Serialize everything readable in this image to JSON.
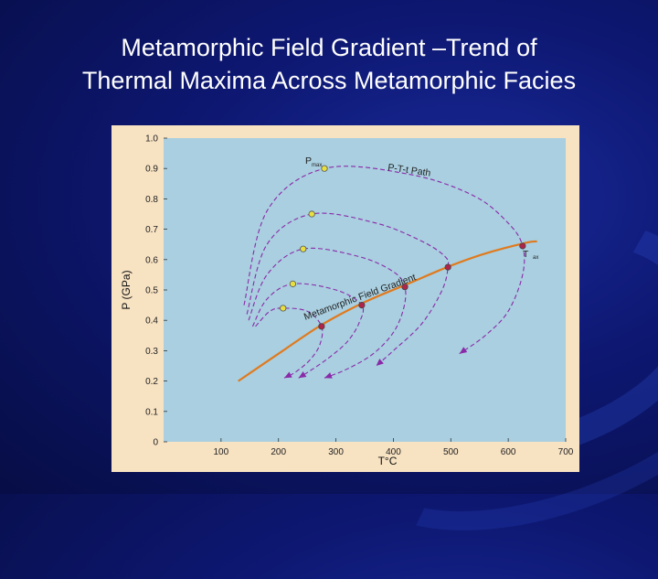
{
  "slide": {
    "title_line1": "Metamorphic Field Gradient –Trend of",
    "title_line2": "Thermal Maxima Across Metamorphic Facies"
  },
  "colors": {
    "background": "#0d1770",
    "plot_bg": "#a9cfe0",
    "frame_bg": "#f7e2c2",
    "gradient_line": "#e07a1e",
    "path_line": "#8a2aa8",
    "pmax_marker": "#e8e040",
    "tmax_marker": "#b0244a"
  },
  "chart_data": {
    "type": "line",
    "title": "",
    "xlabel": "T°C",
    "ylabel": "P (GPa)",
    "xlim": [
      0,
      700
    ],
    "ylim": [
      0,
      1.0
    ],
    "x_ticks": [
      100,
      200,
      300,
      400,
      500,
      600,
      700
    ],
    "y_ticks": [
      0,
      0.1,
      0.2,
      0.3,
      0.4,
      0.5,
      0.6,
      0.7,
      0.8,
      0.9,
      1.0
    ],
    "grid": false,
    "annotations": {
      "gradient_label": "Metamorphic Field Gradient",
      "path_label": "P-T-t Path",
      "pmax_label": "P",
      "pmax_sub": "max",
      "tmax_label": "T",
      "tmax_sub": "ax"
    },
    "field_gradient": {
      "x": [
        130,
        200,
        275,
        350,
        425,
        500,
        560,
        630,
        650
      ],
      "y": [
        0.2,
        0.29,
        0.385,
        0.46,
        0.52,
        0.58,
        0.62,
        0.655,
        0.66
      ]
    },
    "paths": [
      {
        "pmax": [
          208,
          0.44
        ],
        "tmax": [
          275,
          0.38
        ],
        "x": [
          160,
          185,
          208,
          250,
          275,
          272,
          255,
          230,
          210
        ],
        "y": [
          0.38,
          0.43,
          0.44,
          0.43,
          0.38,
          0.32,
          0.27,
          0.23,
          0.21
        ]
      },
      {
        "pmax": [
          225,
          0.52
        ],
        "tmax": [
          345,
          0.45
        ],
        "x": [
          155,
          180,
          225,
          300,
          345,
          340,
          320,
          290,
          260,
          235
        ],
        "y": [
          0.38,
          0.47,
          0.52,
          0.5,
          0.45,
          0.39,
          0.33,
          0.28,
          0.24,
          0.21
        ]
      },
      {
        "pmax": [
          243,
          0.635
        ],
        "tmax": [
          420,
          0.51
        ],
        "x": [
          148,
          180,
          243,
          340,
          400,
          420,
          418,
          400,
          365,
          320,
          280
        ],
        "y": [
          0.4,
          0.55,
          0.635,
          0.61,
          0.56,
          0.51,
          0.44,
          0.36,
          0.29,
          0.24,
          0.21
        ]
      },
      {
        "pmax": [
          258,
          0.75
        ],
        "tmax": [
          495,
          0.575
        ],
        "x": [
          145,
          180,
          258,
          370,
          450,
          490,
          495,
          485,
          450,
          400,
          370
        ],
        "y": [
          0.42,
          0.65,
          0.75,
          0.72,
          0.66,
          0.61,
          0.575,
          0.5,
          0.39,
          0.3,
          0.25
        ]
      },
      {
        "pmax": [
          280,
          0.9
        ],
        "tmax": [
          625,
          0.645
        ],
        "x": [
          140,
          180,
          280,
          430,
          540,
          600,
          625,
          625,
          600,
          560,
          515
        ],
        "y": [
          0.45,
          0.76,
          0.9,
          0.88,
          0.81,
          0.72,
          0.645,
          0.55,
          0.43,
          0.35,
          0.29
        ]
      }
    ]
  }
}
